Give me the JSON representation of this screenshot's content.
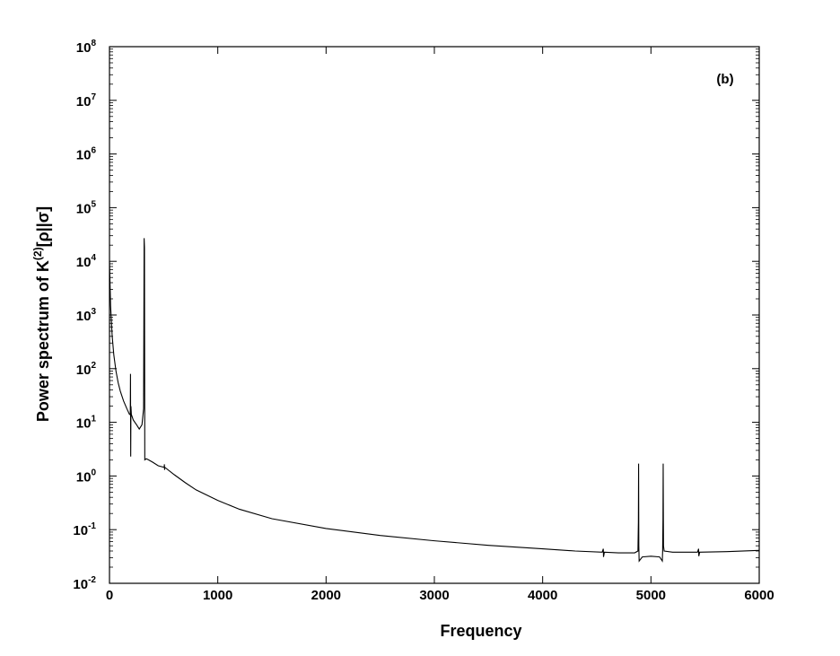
{
  "chart_data": {
    "type": "line",
    "title": "",
    "panel_label": "(b)",
    "xlabel": "Frequency",
    "ylabel": {
      "base": "Power spectrum of K",
      "sup": "(2)",
      "rest": "[ρ||σ]"
    },
    "xlim": [
      0,
      6000
    ],
    "ylim": [
      0.01,
      100000000
    ],
    "y_scale": "log",
    "grid": false,
    "legend": "none",
    "line_color": "#000000",
    "x_ticks": [
      "0",
      "1000",
      "2000",
      "3000",
      "4000",
      "5000",
      "6000"
    ],
    "y_ticks": [
      {
        "base": "10",
        "exp": "-2",
        "value": 0.01
      },
      {
        "base": "10",
        "exp": "-1",
        "value": 0.1
      },
      {
        "base": "10",
        "exp": "0",
        "value": 1
      },
      {
        "base": "10",
        "exp": "1",
        "value": 10
      },
      {
        "base": "10",
        "exp": "2",
        "value": 100
      },
      {
        "base": "10",
        "exp": "3",
        "value": 1000
      },
      {
        "base": "10",
        "exp": "4",
        "value": 10000
      },
      {
        "base": "10",
        "exp": "5",
        "value": 100000
      },
      {
        "base": "10",
        "exp": "6",
        "value": 1000000
      },
      {
        "base": "10",
        "exp": "7",
        "value": 10000000
      },
      {
        "base": "10",
        "exp": "8",
        "value": 100000000
      }
    ],
    "series": [
      {
        "points": [
          [
            0,
            10000
          ],
          [
            10,
            1500
          ],
          [
            25,
            400
          ],
          [
            40,
            180
          ],
          [
            60,
            90
          ],
          [
            80,
            55
          ],
          [
            100,
            38
          ],
          [
            130,
            25
          ],
          [
            160,
            18
          ],
          [
            185,
            14
          ],
          [
            192,
            14
          ],
          [
            194,
            80
          ],
          [
            196,
            2.3
          ],
          [
            198,
            20
          ],
          [
            202,
            14
          ],
          [
            220,
            11
          ],
          [
            250,
            9
          ],
          [
            275,
            7.5
          ],
          [
            300,
            9
          ],
          [
            315,
            18
          ],
          [
            320,
            27000
          ],
          [
            323,
            18000
          ],
          [
            326,
            2.0
          ],
          [
            340,
            2.1
          ],
          [
            360,
            2.0
          ],
          [
            400,
            1.8
          ],
          [
            450,
            1.55
          ],
          [
            505,
            1.45
          ],
          [
            507,
            1.65
          ],
          [
            509,
            1.3
          ],
          [
            511,
            1.45
          ],
          [
            600,
            1.05
          ],
          [
            700,
            0.75
          ],
          [
            800,
            0.55
          ],
          [
            1000,
            0.35
          ],
          [
            1200,
            0.24
          ],
          [
            1500,
            0.16
          ],
          [
            2000,
            0.105
          ],
          [
            2500,
            0.078
          ],
          [
            3000,
            0.062
          ],
          [
            3500,
            0.051
          ],
          [
            4000,
            0.044
          ],
          [
            4300,
            0.04
          ],
          [
            4550,
            0.038
          ],
          [
            4560,
            0.044
          ],
          [
            4562,
            0.031
          ],
          [
            4570,
            0.038
          ],
          [
            4700,
            0.037
          ],
          [
            4850,
            0.037
          ],
          [
            4880,
            0.04
          ],
          [
            4884,
            0.14
          ],
          [
            4886,
            1.7
          ],
          [
            4888,
            0.05
          ],
          [
            4891,
            0.026
          ],
          [
            4920,
            0.031
          ],
          [
            5000,
            0.032
          ],
          [
            5080,
            0.031
          ],
          [
            5105,
            0.026
          ],
          [
            5108,
            0.04
          ],
          [
            5111,
            0.15
          ],
          [
            5113,
            1.7
          ],
          [
            5116,
            0.05
          ],
          [
            5122,
            0.04
          ],
          [
            5200,
            0.038
          ],
          [
            5300,
            0.038
          ],
          [
            5430,
            0.038
          ],
          [
            5440,
            0.044
          ],
          [
            5442,
            0.032
          ],
          [
            5450,
            0.038
          ],
          [
            5700,
            0.039
          ],
          [
            6000,
            0.041
          ]
        ]
      }
    ]
  }
}
